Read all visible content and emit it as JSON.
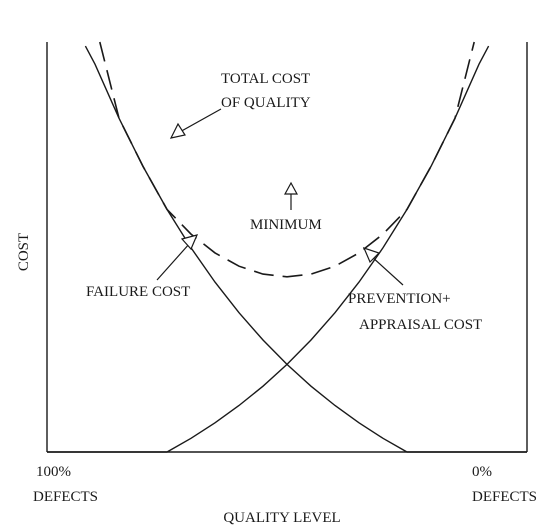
{
  "chart_data": {
    "type": "line",
    "title": "",
    "xlabel": "QUALITY LEVEL",
    "ylabel": "COST",
    "x_tick_labels": {
      "left": [
        "100%",
        "DEFECTS"
      ],
      "right": [
        "0%",
        "DEFECTS"
      ]
    },
    "xlim": [
      0,
      100
    ],
    "ylim": [
      0,
      100
    ],
    "x_meaning": "quality level from 100% defects (0) to 0% defects (100)",
    "series": [
      {
        "name": "failure cost",
        "style": "solid",
        "x": [
          8,
          10,
          15,
          20,
          25,
          30,
          35,
          40,
          45,
          50,
          55,
          60,
          65,
          70,
          75,
          80,
          85,
          90,
          95,
          100
        ],
        "y": [
          99,
          94.58,
          81.41,
          69.66,
          59.17,
          49.8,
          41.44,
          33.98,
          27.32,
          21.37,
          16.06,
          11.33,
          7.11,
          3.34,
          0,
          0,
          0,
          0,
          0,
          0
        ]
      },
      {
        "name": "prevention + appraisal cost",
        "style": "solid",
        "x": [
          0,
          5,
          10,
          15,
          20,
          25,
          30,
          35,
          40,
          45,
          50,
          55,
          60,
          65,
          70,
          75,
          80,
          85,
          90,
          92
        ],
        "y": [
          0,
          0,
          0,
          0,
          0,
          0,
          3.34,
          7.11,
          11.33,
          16.06,
          21.37,
          27.32,
          33.98,
          41.44,
          49.8,
          59.17,
          69.66,
          81.41,
          94.58,
          99
        ]
      },
      {
        "name": "total cost of quality",
        "style": "dashed",
        "x": [
          11,
          15,
          20,
          25,
          30,
          35,
          40,
          45,
          50,
          55,
          60,
          65,
          70,
          75,
          80,
          85,
          89
        ],
        "y": [
          100,
          81.41,
          69.66,
          59.17,
          53.14,
          48.55,
          45.31,
          43.38,
          42.74,
          43.38,
          45.31,
          48.55,
          53.14,
          59.17,
          69.66,
          81.41,
          100
        ]
      }
    ],
    "annotations": [
      {
        "text": [
          "TOTAL COST",
          "OF QUALITY"
        ],
        "points_to": "total cost of quality"
      },
      {
        "text": [
          "MINIMUM"
        ],
        "points_to": "minimum of total cost",
        "at": {
          "x": 50,
          "y": 42.74
        }
      },
      {
        "text": [
          "FAILURE COST"
        ],
        "points_to": "failure cost"
      },
      {
        "text": [
          "PREVENTION+",
          "APPRAISAL COST"
        ],
        "points_to": "prevention + appraisal cost"
      }
    ],
    "grid": false,
    "legend": "none"
  },
  "colors": {
    "ink": "#1a1a1a",
    "background": "#ffffff"
  }
}
